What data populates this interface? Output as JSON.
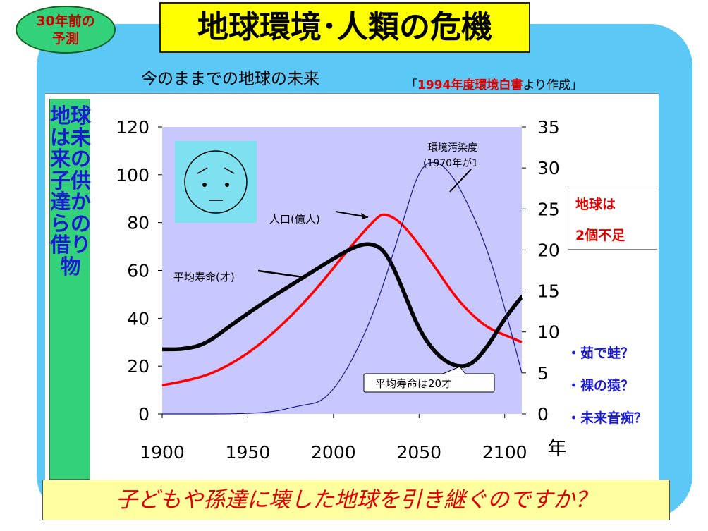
{
  "badge": {
    "line1": "30年前の",
    "line2": "予測"
  },
  "title": "地球環境･人類の危機",
  "subtitle": "今のままでの地球の未来",
  "source": {
    "open": "「",
    "highlight": "1994年度環境白書",
    "rest": "より作成」"
  },
  "side_label": "地球は未来の子供達からの借り物",
  "red_note": {
    "line1": "地球は",
    "line2": "2個不足"
  },
  "blue_notes": [
    "・茹で蛙？",
    "・裸の猿？",
    "・未来音痴？"
  ],
  "bottom_banner": "子どもや孫達に壊した地球を引き継ぐのですか？",
  "colors": {
    "plot_bg": "#c8c8ff",
    "population": "#ff0000",
    "life_expectancy": "#000000",
    "pollution": "#1a1a8c",
    "face": "#7fe0f0"
  },
  "chart_data": {
    "type": "line",
    "x_ticks": [
      1900,
      1950,
      2000,
      2050,
      2100
    ],
    "x_unit": "年",
    "xlim": [
      1900,
      2110
    ],
    "y_left": {
      "ticks": [
        0,
        20,
        40,
        60,
        80,
        100,
        120
      ],
      "lim": [
        0,
        120
      ]
    },
    "y_right": {
      "ticks": [
        0,
        5,
        10,
        15,
        20,
        25,
        30,
        35
      ],
      "lim": [
        0,
        35
      ]
    },
    "series": [
      {
        "name": "人口(億人)",
        "axis": "left",
        "x": [
          1900,
          1915,
          1930,
          1950,
          1970,
          1990,
          2010,
          2025,
          2030,
          2040,
          2055,
          2070,
          2080,
          2090,
          2100,
          2110
        ],
        "y": [
          12,
          14,
          17,
          25,
          37,
          52,
          70,
          82,
          84,
          80,
          66,
          50,
          42,
          36,
          33,
          30
        ]
      },
      {
        "name": "平均寿命(才)",
        "axis": "left",
        "x": [
          1900,
          1912,
          1925,
          1940,
          1960,
          1980,
          2000,
          2015,
          2025,
          2032,
          2040,
          2050,
          2060,
          2070,
          2080,
          2090,
          2100,
          2110
        ],
        "y": [
          27,
          27,
          29,
          37,
          47,
          56,
          65,
          71,
          71,
          66,
          53,
          35,
          25,
          20,
          20,
          28,
          40,
          49
        ],
        "note": "平均寿命は20才"
      },
      {
        "name": "環境汚染度(1970年が1)",
        "axis": "right",
        "x": [
          1900,
          1960,
          1980,
          1995,
          2010,
          2025,
          2040,
          2050,
          2060,
          2070,
          2080,
          2090,
          2100,
          2110
        ],
        "y": [
          0,
          0,
          1,
          1.5,
          6,
          13,
          23,
          30,
          31,
          29,
          25,
          20,
          13,
          5
        ]
      }
    ]
  }
}
